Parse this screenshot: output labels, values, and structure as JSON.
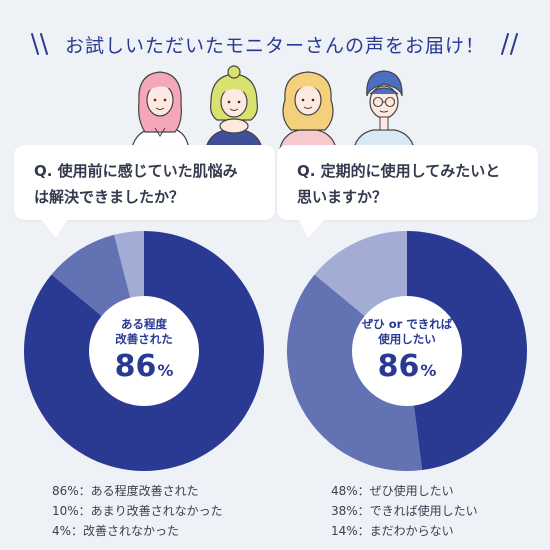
{
  "header": {
    "title": "お試しいただいたモニターさんの声をお届け！"
  },
  "colors": {
    "dark": "#2a3a93",
    "mid": "#6272b2",
    "light": "#a2acd4",
    "accent": "#2a3a93"
  },
  "questions": {
    "left": "Q.  使用前に感じていた肌悩み\n      は解決できましたか？",
    "right": "Q.  定期的に使用してみたいと\n      思いますか？"
  },
  "charts": {
    "left": {
      "center_label": "ある程度\n改善された",
      "center_value": "86",
      "center_unit": "%"
    },
    "right": {
      "center_label": "ぜひ or できれば\n使用したい",
      "center_value": "86",
      "center_unit": "%"
    }
  },
  "chart_data": [
    {
      "type": "pie",
      "title": "使用前に感じていた肌悩みは解決できましたか？",
      "categories": [
        "ある程度改善された",
        "あまり改善されなかった",
        "改善されなかった"
      ],
      "values": [
        86,
        10,
        4
      ],
      "colors": [
        "#2a3a93",
        "#6272b2",
        "#a2acd4"
      ],
      "legend": [
        "86%：ある程度改善された",
        "10%：あまり改善されなかった",
        "4%：改善されなかった"
      ]
    },
    {
      "type": "pie",
      "title": "定期的に使用してみたいと思いますか？",
      "categories": [
        "ぜひ使用したい",
        "できれば使用したい",
        "まだわからない"
      ],
      "values": [
        48,
        38,
        14
      ],
      "colors": [
        "#2a3a93",
        "#6272b2",
        "#a2acd4"
      ],
      "legend": [
        "48%：ぜひ使用したい",
        "38%：できれば使用したい",
        "14%：まだわからない"
      ]
    }
  ]
}
